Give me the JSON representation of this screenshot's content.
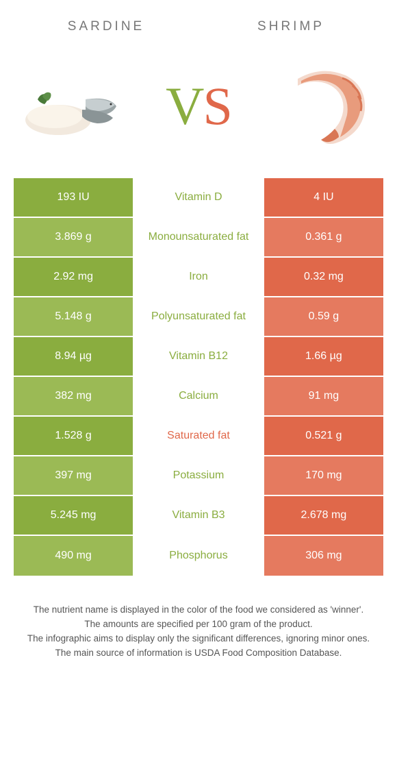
{
  "colors": {
    "left_bg_even": "#8aad3f",
    "left_bg_odd": "#9bba55",
    "right_bg_even": "#e0684a",
    "right_bg_odd": "#e57a5f",
    "green_text": "#8aad3f",
    "orange_text": "#e0684a",
    "white": "#ffffff"
  },
  "header": {
    "left": "Sardine",
    "right": "Shrimp"
  },
  "vs": {
    "v": "V",
    "s": "S"
  },
  "rows": [
    {
      "left": "193 IU",
      "mid": "Vitamin D",
      "right": "4 IU",
      "winner": "left"
    },
    {
      "left": "3.869 g",
      "mid": "Monounsaturated fat",
      "right": "0.361 g",
      "winner": "left"
    },
    {
      "left": "2.92 mg",
      "mid": "Iron",
      "right": "0.32 mg",
      "winner": "left"
    },
    {
      "left": "5.148 g",
      "mid": "Polyunsaturated fat",
      "right": "0.59 g",
      "winner": "left"
    },
    {
      "left": "8.94 µg",
      "mid": "Vitamin B12",
      "right": "1.66 µg",
      "winner": "left"
    },
    {
      "left": "382 mg",
      "mid": "Calcium",
      "right": "91 mg",
      "winner": "left"
    },
    {
      "left": "1.528 g",
      "mid": "Saturated fat",
      "right": "0.521 g",
      "winner": "right"
    },
    {
      "left": "397 mg",
      "mid": "Potassium",
      "right": "170 mg",
      "winner": "left"
    },
    {
      "left": "5.245 mg",
      "mid": "Vitamin B3",
      "right": "2.678 mg",
      "winner": "left"
    },
    {
      "left": "490 mg",
      "mid": "Phosphorus",
      "right": "306 mg",
      "winner": "left"
    }
  ],
  "footnote": {
    "l1": "The nutrient name is displayed in the color of the food we considered as 'winner'.",
    "l2": "The amounts are specified per 100 gram of the product.",
    "l3": "The infographic aims to display only the significant differences, ignoring minor ones.",
    "l4": "The main source of information is USDA Food Composition Database."
  }
}
